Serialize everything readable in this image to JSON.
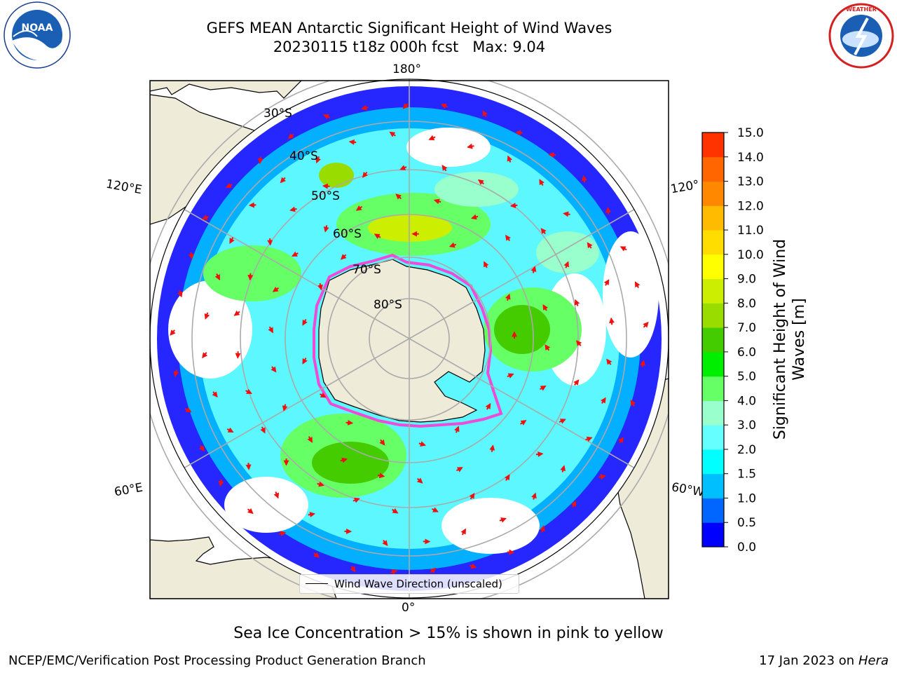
{
  "header": {
    "title_line1": "GEFS MEAN Antarctic Significant Height of Wind Waves",
    "title_line2": "20230115 t18z 000h fcst   Max: 9.04"
  },
  "logos": {
    "noaa_text": "NOAA",
    "noaa_ring_text": "NATIONAL OCEANIC AND ATMOSPHERIC ADMINISTRATION · U.S. DEPARTMENT OF COMMERCE",
    "nws_ring_text": "NATIONAL WEATHER SERVICE"
  },
  "map": {
    "projection": "south-polar-stereographic",
    "longitude_labels": [
      "180°",
      "120°E",
      "120°",
      "60°E",
      "60°W",
      "0°"
    ],
    "latitude_labels": [
      "30°S",
      "40°S",
      "50°S",
      "60°S",
      "70°S",
      "80°S"
    ],
    "colors": {
      "land": "#eeebd9",
      "ice_edge": "#f04ad8",
      "arrow": "#ee1111",
      "grid": "#aaaaaa"
    },
    "legend_text": "Wind Wave Direction (unscaled)"
  },
  "colorbar": {
    "label": "Significant Height of Wind Waves [m]",
    "ticks": [
      "0.0",
      "0.5",
      "1.0",
      "1.5",
      "2.0",
      "3.0",
      "4.0",
      "5.0",
      "6.0",
      "7.0",
      "8.0",
      "9.0",
      "10.0",
      "11.0",
      "12.0",
      "13.0",
      "14.0",
      "15.0"
    ],
    "colors": [
      "#0000ff",
      "#0066ff",
      "#00bfff",
      "#00ffff",
      "#66ffff",
      "#99ffcc",
      "#66ff66",
      "#00ee00",
      "#44cc00",
      "#99dd00",
      "#ccee00",
      "#ffff00",
      "#ffdd00",
      "#ffbb00",
      "#ff8800",
      "#ff6600",
      "#ff3300",
      "#ff0000"
    ]
  },
  "footer": {
    "note": "Sea Ice Concentration > 15% is shown in pink to yellow",
    "credit_left": "NCEP/EMC/Verification Post Processing Product Generation Branch",
    "credit_date": "17 Jan 2023 on ",
    "credit_machine": "Hera"
  }
}
